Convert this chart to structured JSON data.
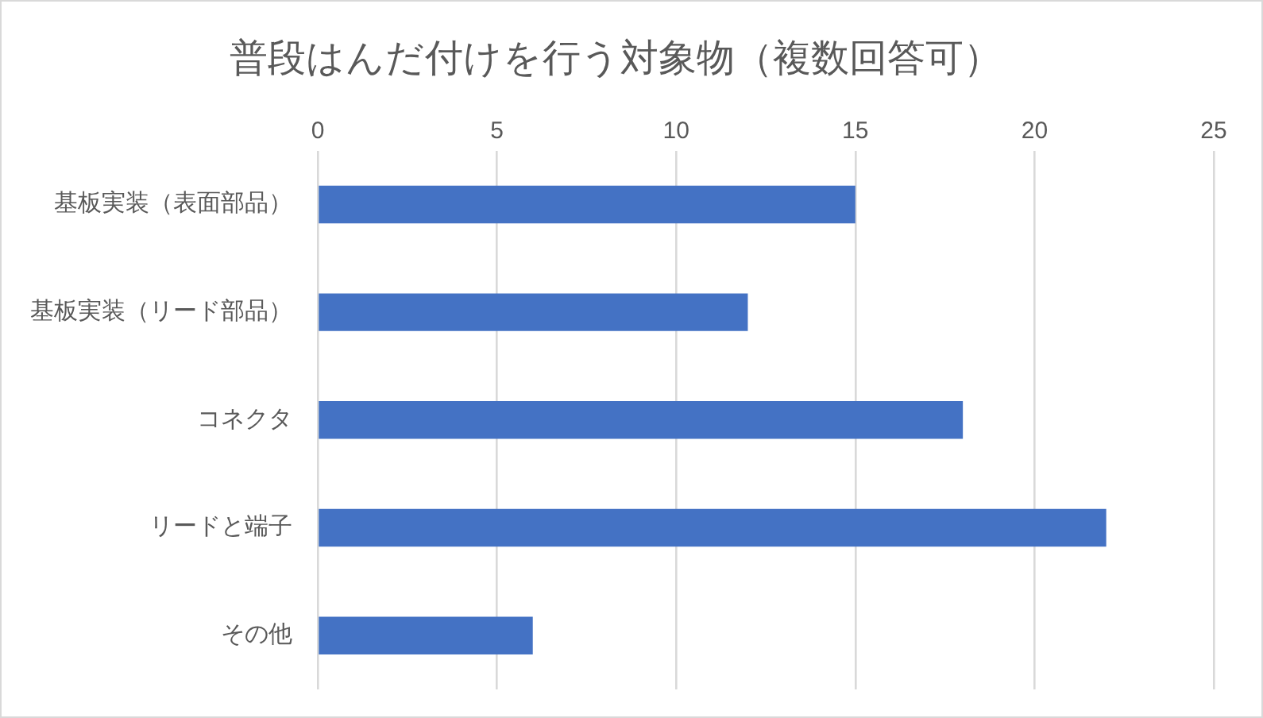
{
  "chart_data": {
    "type": "bar",
    "orientation": "horizontal",
    "title": "普段はんだ付けを行う対象物（複数回答可）",
    "categories": [
      "基板実装（表面部品）",
      "基板実装（リード部品）",
      "コネクタ",
      "リードと端子",
      "その他"
    ],
    "values": [
      15,
      12,
      18,
      22,
      6
    ],
    "color": "#4472c4",
    "xlim": [
      0,
      25
    ],
    "xticks": [
      0,
      5,
      10,
      15,
      20,
      25
    ],
    "grid": "x",
    "legend": false
  }
}
